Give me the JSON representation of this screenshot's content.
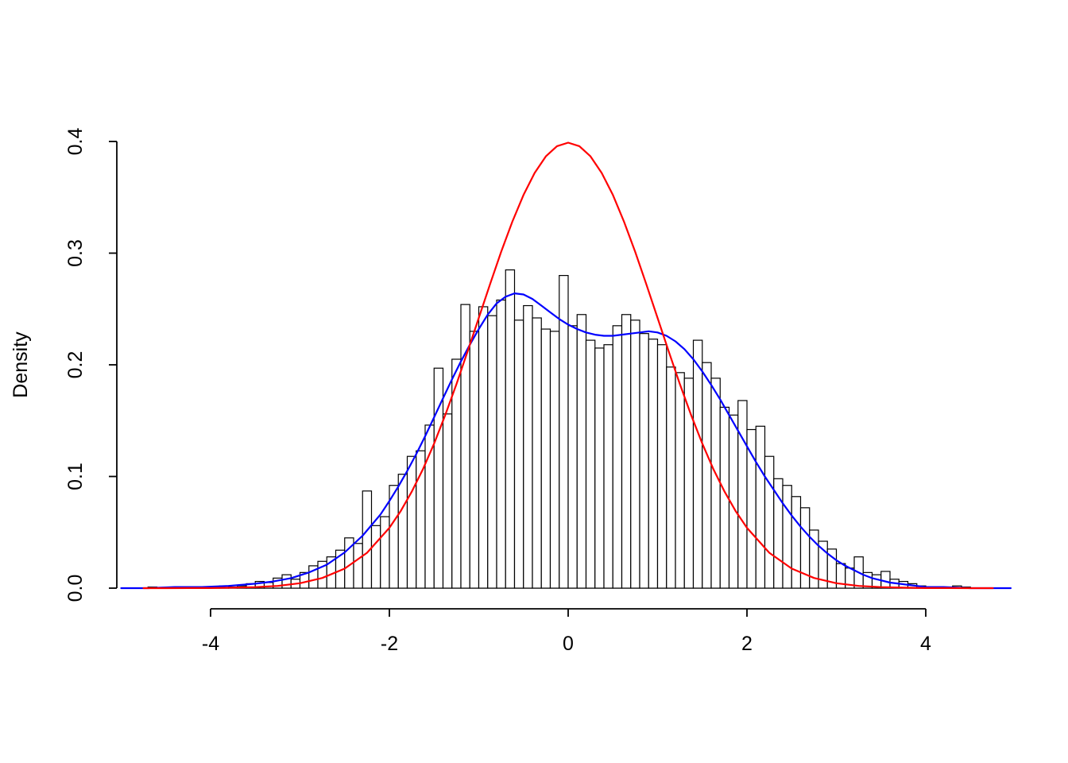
{
  "page": {
    "background": "#ffffff"
  },
  "chart_data": {
    "type": "histogram",
    "title": "",
    "xlabel": "",
    "ylabel": "Density",
    "xlim": [
      -5.1,
      5.1
    ],
    "ylim": [
      0.0,
      0.4
    ],
    "x_ticks": [
      -4,
      -2,
      0,
      2,
      4
    ],
    "x_tick_labels": [
      "-4",
      "-2",
      "0",
      "2",
      "4"
    ],
    "y_ticks": [
      0.0,
      0.1,
      0.2,
      0.3,
      0.4
    ],
    "y_tick_labels": [
      "0.0",
      "0.1",
      "0.2",
      "0.3",
      "0.4"
    ],
    "grid": false,
    "axis_color": "#000000",
    "histogram": {
      "name": "sample-histogram",
      "bin_start": -4.7,
      "bin_width": 0.1,
      "bar_fill": "#ffffff",
      "bar_stroke": "#000000",
      "densities": [
        0.001,
        0.0,
        0.0,
        0.001,
        0.0,
        0.001,
        0.0,
        0.001,
        0.002,
        0.001,
        0.002,
        0.004,
        0.006,
        0.005,
        0.009,
        0.012,
        0.008,
        0.014,
        0.02,
        0.024,
        0.028,
        0.034,
        0.045,
        0.04,
        0.087,
        0.056,
        0.064,
        0.092,
        0.102,
        0.118,
        0.123,
        0.146,
        0.197,
        0.156,
        0.205,
        0.254,
        0.23,
        0.252,
        0.244,
        0.258,
        0.285,
        0.24,
        0.253,
        0.242,
        0.232,
        0.23,
        0.28,
        0.235,
        0.245,
        0.222,
        0.215,
        0.218,
        0.235,
        0.245,
        0.24,
        0.228,
        0.223,
        0.218,
        0.198,
        0.193,
        0.188,
        0.222,
        0.202,
        0.188,
        0.162,
        0.155,
        0.168,
        0.142,
        0.145,
        0.118,
        0.098,
        0.092,
        0.082,
        0.072,
        0.052,
        0.042,
        0.035,
        0.022,
        0.018,
        0.028,
        0.014,
        0.012,
        0.015,
        0.008,
        0.006,
        0.004,
        0.002,
        0.001,
        0.0,
        0.0,
        0.002,
        0.001
      ]
    },
    "curves": [
      {
        "name": "kernel-density-estimate",
        "color": "#0000ff",
        "width": 2.2,
        "points": [
          [
            -5.0,
            0
          ],
          [
            -4.7,
            0
          ],
          [
            -4.4,
            0.001
          ],
          [
            -4.1,
            0.001
          ],
          [
            -3.8,
            0.002
          ],
          [
            -3.5,
            0.004
          ],
          [
            -3.3,
            0.006
          ],
          [
            -3.1,
            0.009
          ],
          [
            -2.9,
            0.014
          ],
          [
            -2.7,
            0.021
          ],
          [
            -2.5,
            0.032
          ],
          [
            -2.3,
            0.047
          ],
          [
            -2.1,
            0.066
          ],
          [
            -2.0,
            0.078
          ],
          [
            -1.9,
            0.091
          ],
          [
            -1.8,
            0.105
          ],
          [
            -1.7,
            0.12
          ],
          [
            -1.6,
            0.136
          ],
          [
            -1.5,
            0.153
          ],
          [
            -1.4,
            0.17
          ],
          [
            -1.3,
            0.187
          ],
          [
            -1.2,
            0.203
          ],
          [
            -1.1,
            0.218
          ],
          [
            -1.0,
            0.232
          ],
          [
            -0.9,
            0.245
          ],
          [
            -0.8,
            0.255
          ],
          [
            -0.7,
            0.261
          ],
          [
            -0.6,
            0.264
          ],
          [
            -0.5,
            0.263
          ],
          [
            -0.4,
            0.259
          ],
          [
            -0.3,
            0.253
          ],
          [
            -0.2,
            0.247
          ],
          [
            -0.1,
            0.241
          ],
          [
            0.0,
            0.236
          ],
          [
            0.1,
            0.232
          ],
          [
            0.2,
            0.229
          ],
          [
            0.3,
            0.227
          ],
          [
            0.4,
            0.226
          ],
          [
            0.5,
            0.226
          ],
          [
            0.6,
            0.227
          ],
          [
            0.7,
            0.228
          ],
          [
            0.8,
            0.229
          ],
          [
            0.9,
            0.23
          ],
          [
            1.0,
            0.229
          ],
          [
            1.1,
            0.226
          ],
          [
            1.2,
            0.221
          ],
          [
            1.3,
            0.214
          ],
          [
            1.4,
            0.205
          ],
          [
            1.5,
            0.194
          ],
          [
            1.6,
            0.182
          ],
          [
            1.7,
            0.169
          ],
          [
            1.8,
            0.155
          ],
          [
            1.9,
            0.141
          ],
          [
            2.0,
            0.127
          ],
          [
            2.1,
            0.113
          ],
          [
            2.2,
            0.1
          ],
          [
            2.3,
            0.088
          ],
          [
            2.4,
            0.076
          ],
          [
            2.5,
            0.065
          ],
          [
            2.6,
            0.055
          ],
          [
            2.7,
            0.046
          ],
          [
            2.8,
            0.038
          ],
          [
            2.9,
            0.031
          ],
          [
            3.0,
            0.025
          ],
          [
            3.1,
            0.02
          ],
          [
            3.2,
            0.016
          ],
          [
            3.3,
            0.012
          ],
          [
            3.4,
            0.009
          ],
          [
            3.5,
            0.007
          ],
          [
            3.6,
            0.005
          ],
          [
            3.7,
            0.004
          ],
          [
            3.8,
            0.003
          ],
          [
            3.9,
            0.002
          ],
          [
            4.0,
            0.001
          ],
          [
            4.2,
            0.001
          ],
          [
            4.5,
            0
          ],
          [
            4.95,
            0
          ]
        ]
      },
      {
        "name": "standard-normal-density",
        "color": "#ff0000",
        "width": 2.2,
        "points": [
          [
            -4.75,
            0
          ],
          [
            -4.5,
            0
          ],
          [
            -4.25,
            0.0001
          ],
          [
            -4.0,
            0.0001
          ],
          [
            -3.75,
            0.0004
          ],
          [
            -3.5,
            0.0009
          ],
          [
            -3.25,
            0.002
          ],
          [
            -3.0,
            0.0044
          ],
          [
            -2.75,
            0.0091
          ],
          [
            -2.5,
            0.0175
          ],
          [
            -2.25,
            0.0317
          ],
          [
            -2.0,
            0.054
          ],
          [
            -1.875,
            0.0688
          ],
          [
            -1.75,
            0.0863
          ],
          [
            -1.625,
            0.1065
          ],
          [
            -1.5,
            0.1295
          ],
          [
            -1.375,
            0.155
          ],
          [
            -1.25,
            0.1826
          ],
          [
            -1.125,
            0.2119
          ],
          [
            -1.0,
            0.242
          ],
          [
            -0.875,
            0.272
          ],
          [
            -0.75,
            0.3011
          ],
          [
            -0.625,
            0.3281
          ],
          [
            -0.5,
            0.3521
          ],
          [
            -0.375,
            0.3718
          ],
          [
            -0.25,
            0.3867
          ],
          [
            -0.125,
            0.3958
          ],
          [
            0,
            0.3989
          ],
          [
            0.125,
            0.3958
          ],
          [
            0.25,
            0.3867
          ],
          [
            0.375,
            0.3718
          ],
          [
            0.5,
            0.3521
          ],
          [
            0.625,
            0.3281
          ],
          [
            0.75,
            0.3011
          ],
          [
            0.875,
            0.272
          ],
          [
            1.0,
            0.242
          ],
          [
            1.125,
            0.2119
          ],
          [
            1.25,
            0.1826
          ],
          [
            1.375,
            0.155
          ],
          [
            1.5,
            0.1295
          ],
          [
            1.625,
            0.1065
          ],
          [
            1.75,
            0.0863
          ],
          [
            1.875,
            0.0688
          ],
          [
            2.0,
            0.054
          ],
          [
            2.25,
            0.0317
          ],
          [
            2.5,
            0.0175
          ],
          [
            2.75,
            0.0091
          ],
          [
            3.0,
            0.0044
          ],
          [
            3.25,
            0.002
          ],
          [
            3.5,
            0.0009
          ],
          [
            3.75,
            0.0004
          ],
          [
            4.0,
            0.0001
          ],
          [
            4.25,
            0.0001
          ],
          [
            4.5,
            0
          ],
          [
            4.75,
            0
          ]
        ]
      }
    ]
  }
}
